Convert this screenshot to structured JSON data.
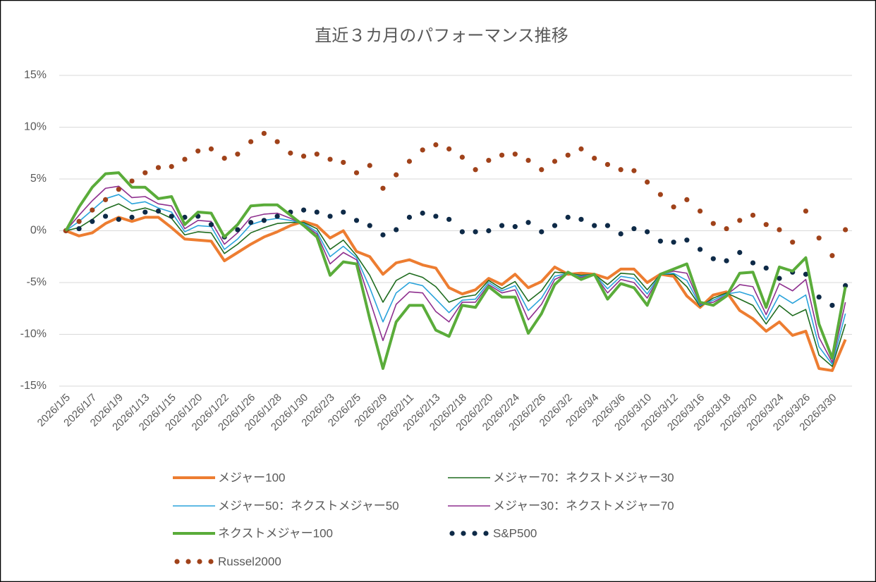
{
  "chart_data": {
    "type": "line",
    "title": "直近３カ月のパフォーマンス推移",
    "categories": [
      "2026/1/5",
      null,
      "2026/1/7",
      null,
      "2026/1/9",
      null,
      "2026/1/13",
      null,
      "2026/1/15",
      null,
      "2026/1/20",
      null,
      "2026/1/22",
      null,
      "2026/1/26",
      null,
      "2026/1/28",
      null,
      "2026/1/30",
      null,
      "2026/2/3",
      null,
      "2026/2/5",
      null,
      "2026/2/9",
      null,
      "2026/2/11",
      null,
      "2026/2/13",
      null,
      "2026/2/18",
      null,
      "2026/2/20",
      null,
      "2026/2/24",
      null,
      "2026/2/26",
      null,
      "2026/3/2",
      null,
      "2026/3/4",
      null,
      "2026/3/6",
      null,
      "2026/3/10",
      null,
      "2026/3/12",
      null,
      "2026/3/16",
      null,
      "2026/3/18",
      null,
      "2026/3/20",
      null,
      "2026/3/24",
      null,
      "2026/3/26",
      null,
      "2026/3/30",
      null
    ],
    "series": [
      {
        "name": "メジャー100",
        "color": "#ed7d31",
        "style": "thick",
        "values": [
          0,
          -0.5,
          -0.2,
          0.7,
          1.3,
          0.9,
          1.3,
          1.3,
          0.3,
          -0.8,
          -0.9,
          -1.0,
          -2.9,
          -2.1,
          -1.3,
          -0.6,
          -0.1,
          0.5,
          0.9,
          0.5,
          -0.7,
          0.0,
          -2.0,
          -2.5,
          -4.2,
          -3.1,
          -2.8,
          -3.3,
          -3.6,
          -5.5,
          -6.1,
          -5.7,
          -4.6,
          -5.2,
          -4.2,
          -5.5,
          -4.9,
          -3.5,
          -4.2,
          -4.1,
          -4.2,
          -4.6,
          -3.7,
          -3.7,
          -5.0,
          -4.2,
          -4.4,
          -6.3,
          -7.4,
          -6.2,
          -5.9,
          -7.7,
          -8.5,
          -9.7,
          -8.8,
          -10.1,
          -9.7,
          -13.3,
          -13.5,
          -10.5
        ]
      },
      {
        "name": "メジャー70：ネクストメジャー30",
        "color": "#1e6b1e",
        "style": "thin",
        "values": [
          0,
          0.3,
          1.1,
          2.1,
          2.6,
          1.9,
          2.2,
          1.8,
          1.2,
          -0.4,
          -0.1,
          -0.2,
          -2.2,
          -1.3,
          -0.2,
          0.3,
          0.7,
          0.8,
          0.8,
          0.2,
          -1.8,
          -0.9,
          -2.4,
          -4.3,
          -6.9,
          -4.8,
          -4.1,
          -4.5,
          -5.4,
          -6.9,
          -6.4,
          -6.2,
          -4.8,
          -5.6,
          -4.9,
          -6.8,
          -5.8,
          -4.0,
          -4.1,
          -4.3,
          -4.2,
          -5.2,
          -4.1,
          -4.2,
          -5.7,
          -4.2,
          -4.2,
          -5.4,
          -7.3,
          -6.5,
          -6.0,
          -6.6,
          -7.2,
          -9.0,
          -7.2,
          -8.2,
          -7.6,
          -12.0,
          -13.1,
          -9.0
        ]
      },
      {
        "name": "メジャー50：ネクストメジャー50",
        "color": "#2aa3db",
        "style": "thin",
        "values": [
          0,
          0.9,
          2.0,
          3.1,
          3.5,
          2.6,
          2.8,
          2.2,
          1.8,
          -0.1,
          0.5,
          0.4,
          -1.8,
          -0.8,
          0.6,
          1.0,
          1.2,
          1.0,
          0.7,
          -0.1,
          -2.5,
          -1.5,
          -2.6,
          -5.5,
          -8.8,
          -6.0,
          -5.0,
          -5.3,
          -6.6,
          -7.9,
          -6.7,
          -6.6,
          -5.0,
          -5.8,
          -5.3,
          -7.7,
          -6.5,
          -4.4,
          -4.1,
          -4.4,
          -4.2,
          -5.6,
          -4.4,
          -4.6,
          -6.1,
          -4.2,
          -4.1,
          -4.8,
          -7.2,
          -6.7,
          -6.1,
          -5.9,
          -6.3,
          -8.6,
          -6.2,
          -7.0,
          -6.2,
          -11.2,
          -12.9,
          -8.0
        ]
      },
      {
        "name": "メジャー30：ネクストメジャー70",
        "color": "#8e2f8e",
        "style": "thin",
        "values": [
          0,
          1.5,
          2.9,
          4.1,
          4.3,
          3.2,
          3.3,
          2.6,
          2.4,
          0.2,
          1.0,
          0.9,
          -1.3,
          -0.2,
          1.3,
          1.6,
          1.7,
          1.2,
          0.6,
          -0.3,
          -3.2,
          -2.1,
          -2.8,
          -6.7,
          -10.6,
          -7.1,
          -5.9,
          -6.0,
          -7.8,
          -8.8,
          -6.9,
          -6.9,
          -5.2,
          -6.0,
          -5.7,
          -8.6,
          -7.1,
          -4.7,
          -4.1,
          -4.5,
          -4.2,
          -6.0,
          -4.7,
          -5.0,
          -6.5,
          -4.2,
          -3.9,
          -4.1,
          -7.1,
          -6.9,
          -6.2,
          -5.2,
          -5.4,
          -8.1,
          -5.1,
          -5.8,
          -4.7,
          -10.3,
          -12.7,
          -6.9
        ]
      },
      {
        "name": "ネクストメジャー100",
        "color": "#5aac3a",
        "style": "thick",
        "values": [
          0,
          2.3,
          4.2,
          5.5,
          5.6,
          4.2,
          4.2,
          3.1,
          3.3,
          0.6,
          1.8,
          1.7,
          -0.6,
          0.6,
          2.4,
          2.5,
          2.5,
          1.5,
          0.5,
          -0.6,
          -4.3,
          -3.0,
          -3.2,
          -8.5,
          -13.3,
          -8.8,
          -7.2,
          -7.2,
          -9.6,
          -10.2,
          -7.2,
          -7.4,
          -5.4,
          -6.4,
          -6.4,
          -9.9,
          -8.0,
          -5.2,
          -4.0,
          -4.7,
          -4.2,
          -6.6,
          -5.1,
          -5.5,
          -7.2,
          -4.2,
          -3.7,
          -3.2,
          -6.9,
          -7.2,
          -6.3,
          -4.1,
          -4.0,
          -7.4,
          -3.5,
          -3.9,
          -2.6,
          -9.0,
          -12.3,
          -5.4
        ]
      },
      {
        "name": "S&P500",
        "color": "#0e2a47",
        "style": "dotted",
        "values": [
          0,
          0.2,
          0.9,
          1.4,
          1.1,
          1.3,
          1.8,
          1.9,
          1.4,
          1.3,
          1.4,
          0.6,
          -0.6,
          0.1,
          0.8,
          1.0,
          1.4,
          1.8,
          2.0,
          1.8,
          1.4,
          1.8,
          1.0,
          0.5,
          -0.4,
          0.1,
          1.3,
          1.7,
          1.4,
          1.1,
          -0.1,
          -0.1,
          0.0,
          0.5,
          0.4,
          0.8,
          -0.1,
          0.5,
          1.3,
          1.1,
          0.5,
          0.5,
          -0.3,
          0.2,
          -0.1,
          -1.0,
          -1.1,
          -0.9,
          -1.8,
          -2.7,
          -2.9,
          -2.1,
          -3.1,
          -3.6,
          -4.6,
          -4.0,
          -4.2,
          -6.4,
          -7.2,
          -5.3
        ]
      },
      {
        "name": "Russel2000",
        "color": "#a0421a",
        "style": "dotted",
        "values": [
          0,
          0.9,
          2.0,
          3.0,
          4.0,
          4.8,
          5.6,
          6.1,
          6.2,
          6.9,
          7.7,
          7.9,
          7.0,
          7.4,
          8.6,
          9.4,
          8.6,
          7.5,
          7.2,
          7.4,
          6.9,
          6.6,
          5.6,
          6.3,
          4.1,
          5.4,
          6.7,
          7.8,
          8.3,
          7.9,
          7.1,
          5.9,
          6.8,
          7.3,
          7.4,
          6.8,
          5.9,
          6.7,
          7.3,
          7.9,
          7.0,
          6.4,
          5.9,
          5.8,
          4.7,
          3.5,
          2.3,
          3.0,
          1.9,
          0.7,
          0.2,
          1.0,
          1.5,
          0.6,
          0.1,
          -1.1,
          1.9,
          -0.7,
          -2.4,
          0.1
        ]
      }
    ],
    "ylim": [
      -15,
      15
    ],
    "yticks": [
      {
        "value": -15,
        "label": "-15%"
      },
      {
        "value": -10,
        "label": "-10%"
      },
      {
        "value": -5,
        "label": "-5%"
      },
      {
        "value": 0,
        "label": "0%"
      },
      {
        "value": 5,
        "label": "5%"
      },
      {
        "value": 10,
        "label": "10%"
      },
      {
        "value": 15,
        "label": "15%"
      }
    ],
    "grid": true
  }
}
